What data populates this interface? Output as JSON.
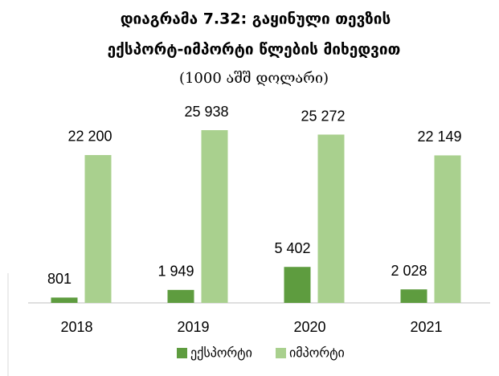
{
  "chart_data": {
    "type": "bar",
    "title": "დიაგრამა 7.32: გაყინული თევზის",
    "title_line2": "ექსპორტ-იმპორტი წლების მიხედვით",
    "subtitle": "(1000 აშშ დოლარი)",
    "categories": [
      "2018",
      "2019",
      "2020",
      "2021"
    ],
    "series": [
      {
        "name": "ექსპორტი",
        "color": "#5e9c3f",
        "values": [
          801,
          1949,
          5402,
          2028
        ],
        "value_labels": [
          "801",
          "1 949",
          "5 402",
          "2 028"
        ]
      },
      {
        "name": "იმპორტი",
        "color": "#a9d08e",
        "values": [
          22200,
          25938,
          25272,
          22149
        ],
        "value_labels": [
          "22 200",
          "25 938",
          "25 272",
          "22 149"
        ]
      }
    ]
  }
}
